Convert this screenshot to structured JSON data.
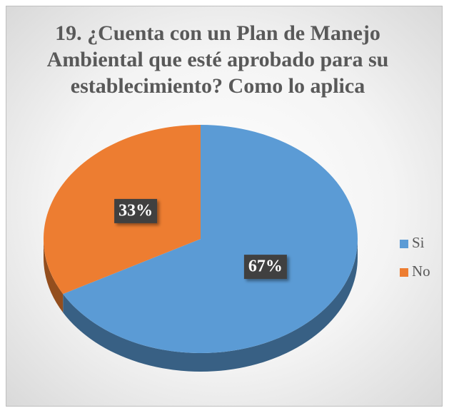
{
  "chart_data": {
    "type": "pie",
    "title": "19. ¿Cuenta con un Plan de Manejo Ambiental que esté aprobado para su establecimiento? Como lo aplica",
    "categories": [
      "Si",
      "No"
    ],
    "values": [
      67,
      33
    ],
    "value_labels": [
      "67%",
      "33%"
    ],
    "colors": [
      "#5b9bd5",
      "#ed7d31"
    ],
    "legend": "right"
  }
}
